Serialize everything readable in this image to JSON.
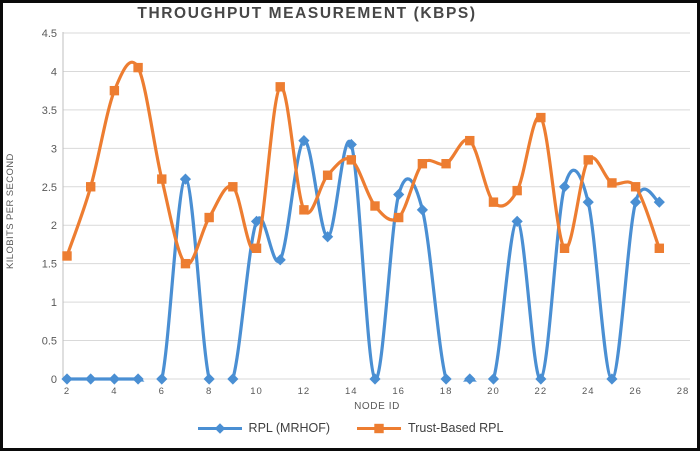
{
  "window": {
    "border_color": "#0a0a0a",
    "background": "#ffffff"
  },
  "chart_data": {
    "type": "line",
    "title": "THROUGHPUT MEASUREMENT (KBPS)",
    "xlabel": "NODE ID",
    "ylabel": "KILOBITS PER SECOND",
    "x": [
      2,
      3,
      4,
      5,
      6,
      7,
      8,
      9,
      10,
      11,
      12,
      13,
      14,
      15,
      16,
      17,
      18,
      19,
      20,
      21,
      22,
      23,
      24,
      25,
      26,
      27
    ],
    "series": [
      {
        "name": "RPL (MRHOF)",
        "color": "#4A8FD3",
        "marker": "diamond",
        "values": [
          0,
          0,
          0,
          0,
          0,
          2.6,
          0,
          0,
          2.05,
          1.55,
          3.1,
          1.85,
          3.05,
          0,
          2.4,
          2.2,
          0,
          0,
          0,
          2.05,
          0,
          2.5,
          2.3,
          0,
          2.3,
          2.3
        ]
      },
      {
        "name": "Trust-Based RPL",
        "color": "#ED7D31",
        "marker": "square",
        "values": [
          1.6,
          2.5,
          3.75,
          4.05,
          2.6,
          1.5,
          2.1,
          2.5,
          1.7,
          3.8,
          2.2,
          2.65,
          2.85,
          2.25,
          2.1,
          2.8,
          2.8,
          3.1,
          2.3,
          2.45,
          3.4,
          1.7,
          2.85,
          2.55,
          2.5,
          1.7
        ]
      }
    ],
    "ylim": [
      0,
      4.5
    ],
    "xlim": [
      2,
      28
    ],
    "yticks": [
      0,
      0.5,
      1,
      1.5,
      2,
      2.5,
      3,
      3.5,
      4,
      4.5
    ],
    "ytick_labels": [
      "0",
      "0.5",
      "1",
      "1.5",
      "2",
      "2.5",
      "3",
      "3.5",
      "4",
      "4.5"
    ],
    "xticks": [
      2,
      4,
      6,
      8,
      10,
      12,
      14,
      16,
      18,
      20,
      22,
      24,
      26,
      28
    ],
    "grid": true,
    "smooth": true,
    "legend_position": "bottom",
    "colors": {
      "gridline": "#D9D9D9",
      "axis_line": "#BFBFBF",
      "tick_text": "#595959",
      "title_text": "#474747",
      "legend_text": "#3f3f3f"
    }
  }
}
